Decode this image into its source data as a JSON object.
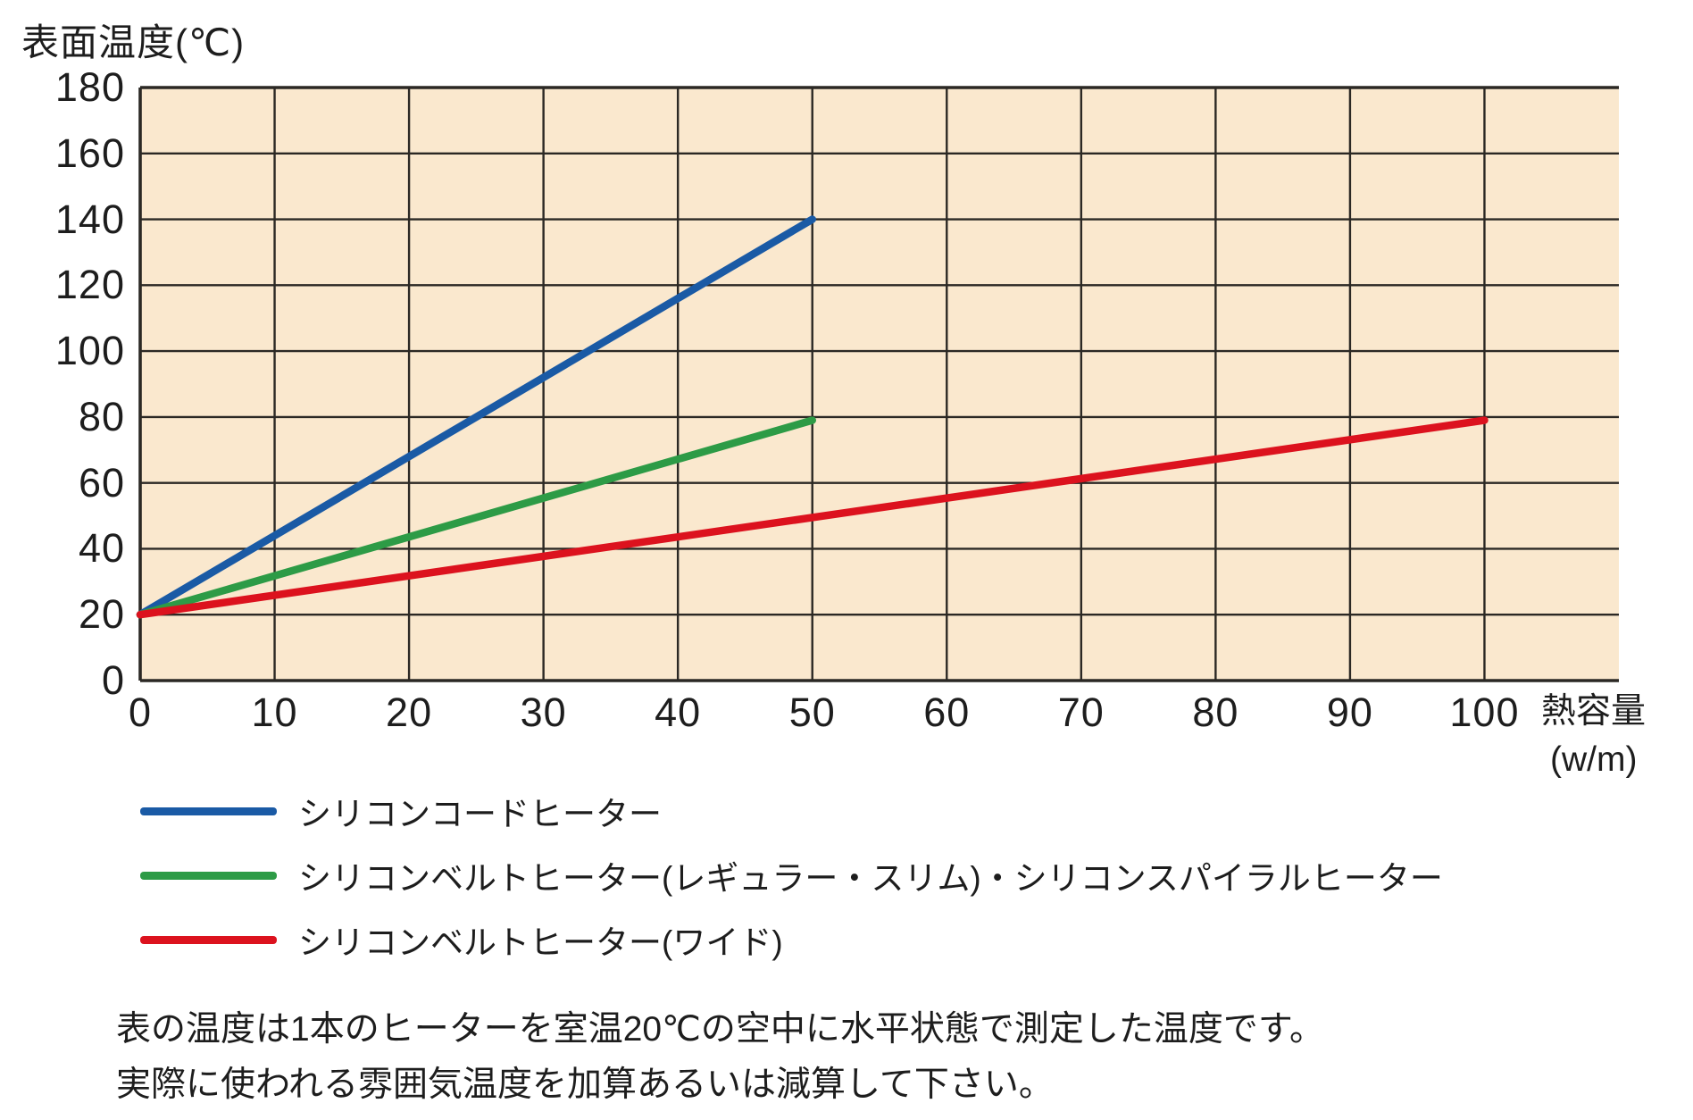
{
  "title": "表面温度(℃)",
  "chart_data": {
    "type": "line",
    "title": "表面温度(℃)",
    "xlabel": "熱容量",
    "xlabel_unit": "(w/m)",
    "ylabel": "表面温度(℃)",
    "xlim": [
      0,
      110
    ],
    "ylim": [
      0,
      180
    ],
    "xticks": [
      0,
      10,
      20,
      30,
      40,
      50,
      60,
      70,
      80,
      90,
      100
    ],
    "yticks": [
      0,
      20,
      40,
      60,
      80,
      100,
      120,
      140,
      160,
      180
    ],
    "grid": true,
    "plot_bg": "#FAE8CE",
    "grid_color": "#2B2824",
    "legend_position": "below-left",
    "series": [
      {
        "name": "シリコンコードヒーター",
        "color": "#1A5AA5",
        "points": [
          [
            0,
            20
          ],
          [
            50,
            140
          ]
        ]
      },
      {
        "name": "シリコンベルトヒーター(レギュラー・スリム)・シリコンスパイラルヒーター",
        "color": "#2D9B46",
        "points": [
          [
            0,
            20
          ],
          [
            50,
            79
          ]
        ]
      },
      {
        "name": "シリコンベルトヒーター(ワイド)",
        "color": "#DC121E",
        "points": [
          [
            0,
            20
          ],
          [
            100,
            79
          ]
        ]
      }
    ]
  },
  "notes": [
    "表の温度は1本のヒーターを室温20℃の空中に水平状態で測定した温度です。",
    "実際に使われる雰囲気温度を加算あるいは減算して下さい。"
  ]
}
